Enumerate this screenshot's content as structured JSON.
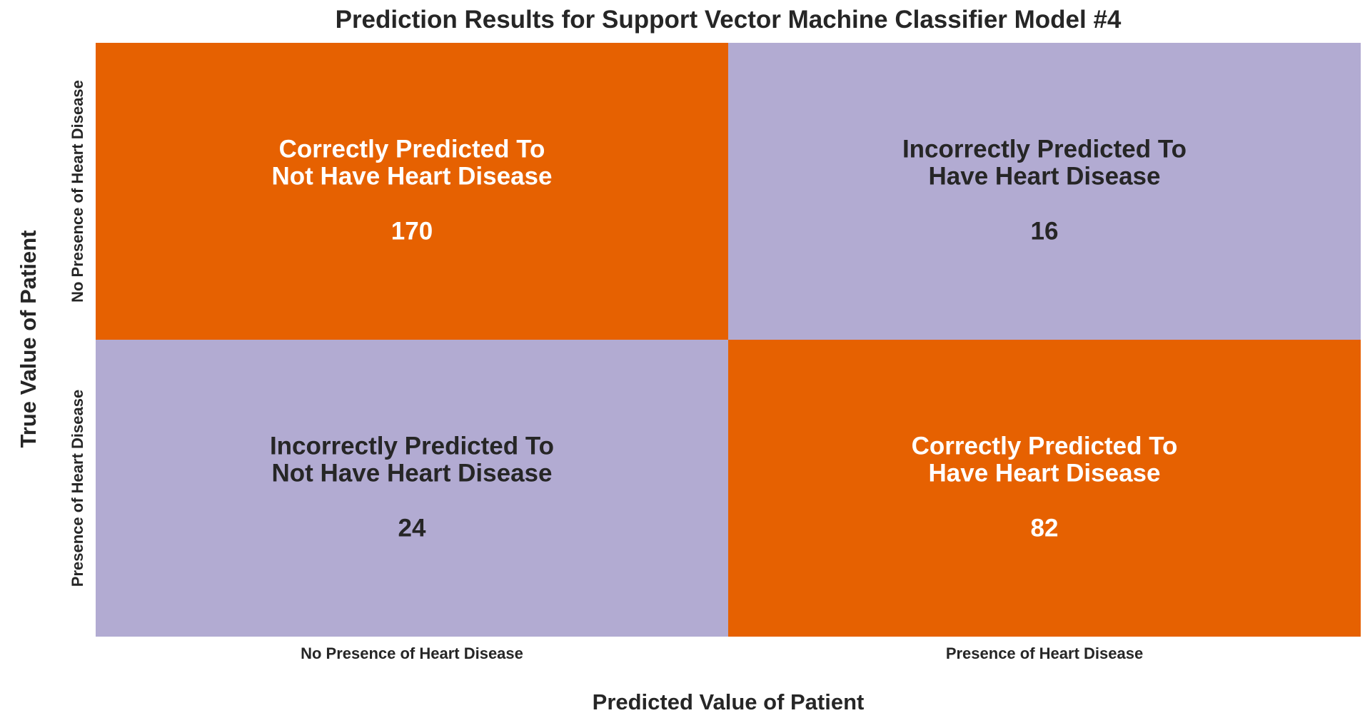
{
  "chart_data": {
    "type": "heatmap",
    "title": "Prediction Results for Support Vector Machine Classifier Model #4",
    "xlabel": "Predicted Value of Patient",
    "ylabel": "True Value of Patient",
    "x_categories": [
      "No Presence of Heart Disease",
      "Presence of Heart Disease"
    ],
    "y_categories": [
      "No Presence of Heart Disease",
      "Presence of Heart Disease"
    ],
    "cells": [
      {
        "row": 0,
        "col": 0,
        "label_line1": "Correctly Predicted To",
        "label_line2": "Not Have Heart Disease",
        "value": 170,
        "color": "#e66101",
        "text_color": "#ffffff"
      },
      {
        "row": 0,
        "col": 1,
        "label_line1": "Incorrectly Predicted To",
        "label_line2": "Have Heart Disease",
        "value": 16,
        "color": "#b2abd2",
        "text_color": "#262626"
      },
      {
        "row": 1,
        "col": 0,
        "label_line1": "Incorrectly Predicted To",
        "label_line2": "Not Have Heart Disease",
        "value": 24,
        "color": "#b2abd2",
        "text_color": "#262626"
      },
      {
        "row": 1,
        "col": 1,
        "label_line1": "Correctly Predicted To",
        "label_line2": "Have Heart Disease",
        "value": 82,
        "color": "#e66101",
        "text_color": "#ffffff"
      }
    ],
    "legend": "none",
    "grid": false
  }
}
